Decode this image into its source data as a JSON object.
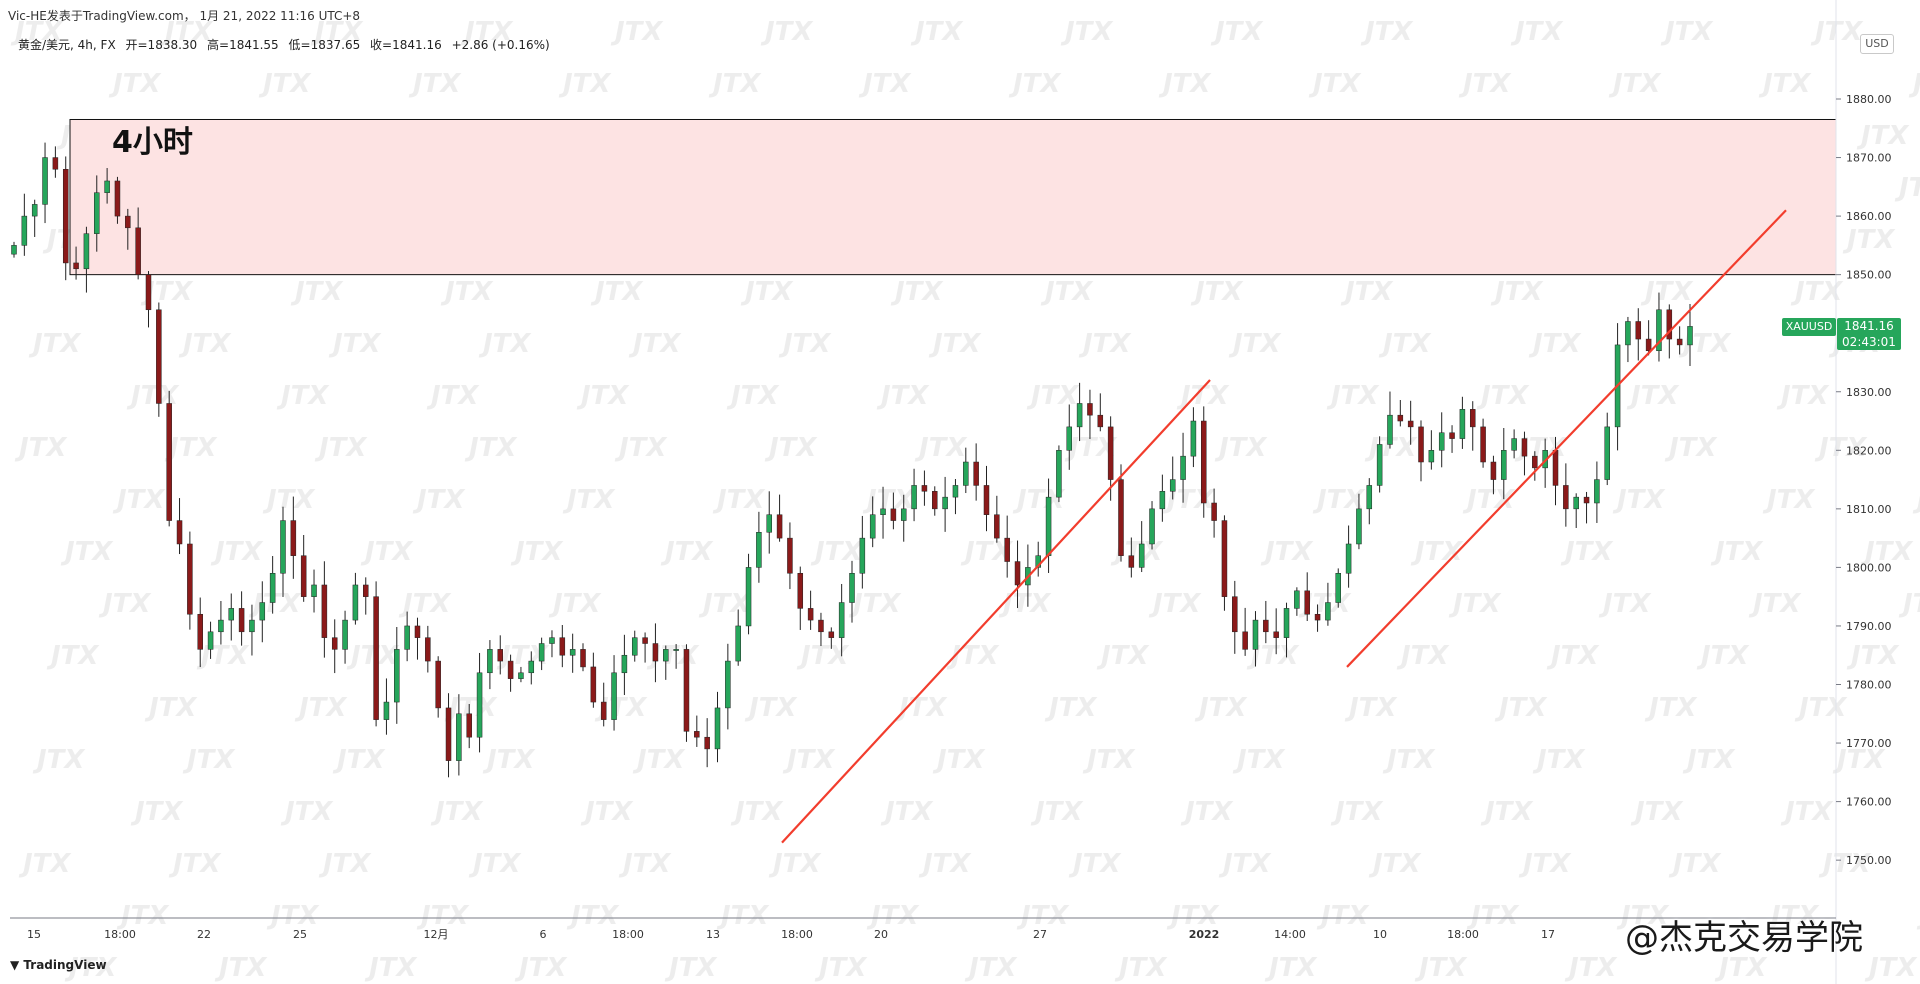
{
  "header": {
    "publish_info": "Vic-HE发表于TradingView.com， 1月 21, 2022 11:16 UTC+8",
    "ohlc": {
      "instrument": "黄金/美元, 4h, FX",
      "open": "开=1838.30",
      "high": "高=1841.55",
      "low": "低=1837.65",
      "close": "收=1841.16",
      "change": "+2.86 (+0.16%)"
    }
  },
  "price_scale": {
    "currency": "USD",
    "ticks": [
      "1880.00",
      "1870.00",
      "1860.00",
      "1850.00",
      "1830.00",
      "1820.00",
      "1810.00",
      "1800.00",
      "1790.00",
      "1780.00",
      "1770.00",
      "1760.00",
      "1750.00"
    ]
  },
  "time_scale": {
    "labels": [
      "15",
      "18:00",
      "22",
      "25",
      "12月",
      "6",
      "18:00",
      "13",
      "18:00",
      "20",
      "27",
      "2022",
      "14:00",
      "10",
      "18:00",
      "17"
    ]
  },
  "last_price": {
    "symbol": "XAUUSD",
    "price": "1841.16",
    "countdown": "02:43:01"
  },
  "annotations": {
    "zone_label": "4小时",
    "watermark_text": "JTX",
    "brand": "@杰克交易学院"
  },
  "footer": {
    "logo_text": "TradingView"
  },
  "colors": {
    "up": "#26a65b",
    "down": "#8b1a1a",
    "trendline": "#f23d2d",
    "zone_fill": "#fde3e3",
    "zone_border": "#111111"
  },
  "chart_data": {
    "type": "candlestick",
    "symbol": "XAUUSD",
    "timeframe": "4h",
    "ylim": [
      1745,
      1885
    ],
    "zone": {
      "from": 1850,
      "to": 1876.5
    },
    "close_path": [
      1855,
      1860,
      1862,
      1870,
      1868,
      1852,
      1851,
      1857,
      1864,
      1866,
      1860,
      1858,
      1850,
      1844,
      1828,
      1808,
      1804,
      1792,
      1786,
      1789,
      1791,
      1793,
      1789,
      1791,
      1794,
      1799,
      1808,
      1802,
      1795,
      1797,
      1788,
      1786,
      1791,
      1797,
      1795,
      1774,
      1777,
      1786,
      1790,
      1788,
      1784,
      1776,
      1767,
      1775,
      1771,
      1782,
      1786,
      1784,
      1781,
      1782,
      1784,
      1787,
      1788,
      1785,
      1786,
      1783,
      1777,
      1774,
      1782,
      1785,
      1788,
      1787,
      1784,
      1786,
      1786,
      1772,
      1771,
      1769,
      1776,
      1784,
      1790,
      1800,
      1806,
      1809,
      1805,
      1799,
      1793,
      1791,
      1789,
      1788,
      1794,
      1799,
      1805,
      1809,
      1810,
      1808,
      1810,
      1814,
      1813,
      1810,
      1812,
      1814,
      1818,
      1814,
      1809,
      1805,
      1801,
      1797,
      1800,
      1802,
      1812,
      1820,
      1824,
      1828,
      1826,
      1824,
      1815,
      1802,
      1800,
      1804,
      1810,
      1813,
      1815,
      1819,
      1825,
      1811,
      1808,
      1795,
      1789,
      1786,
      1791,
      1789,
      1788,
      1793,
      1796,
      1792,
      1791,
      1794,
      1799,
      1804,
      1810,
      1814,
      1821,
      1826,
      1825,
      1824,
      1818,
      1820,
      1823,
      1822,
      1827,
      1824,
      1818,
      1815,
      1820,
      1822,
      1819,
      1817,
      1820,
      1814,
      1810,
      1812,
      1811,
      1815,
      1824,
      1838,
      1842,
      1839,
      1837,
      1844,
      1839,
      1838,
      1841.16
    ],
    "trendlines": [
      {
        "from": {
          "x": "18:00 (13日)",
          "y": 1753
        },
        "to": {
          "x": "30日",
          "y": 1832
        }
      },
      {
        "from": {
          "x": "10日",
          "y": 1783
        },
        "to": {
          "x": "21日",
          "y": 1861
        }
      }
    ]
  }
}
